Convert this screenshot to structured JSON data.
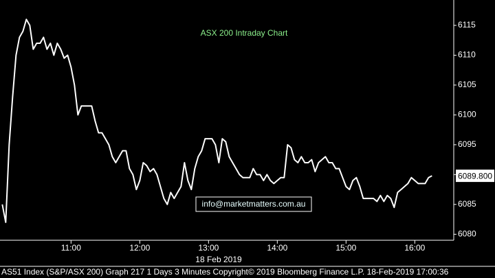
{
  "chart_data": {
    "type": "line",
    "title": "ASX 200 Intraday Chart",
    "x_axis_label": "18 Feb 2019",
    "watermark": "info@marketmatters.com.au",
    "footer": "AS51 Index (S&P/ASX 200) Graph 217 1 Days 3 Minutes Copyright© 2019 Bloomberg Finance L.P. 18-Feb-2019 17:00:36",
    "last_value": {
      "value": 6089.8,
      "label": "6089.800"
    },
    "xlim": [
      598,
      994
    ],
    "xticks": [
      {
        "value": 660,
        "label": "11:00"
      },
      {
        "value": 720,
        "label": "12:00"
      },
      {
        "value": 780,
        "label": "13:00"
      },
      {
        "value": 840,
        "label": "14:00"
      },
      {
        "value": 900,
        "label": "15:00"
      },
      {
        "value": 960,
        "label": "16:00"
      }
    ],
    "ylim": [
      6079,
      6119.25
    ],
    "yticks": [
      6080,
      6085,
      6090,
      6095,
      6100,
      6105,
      6110,
      6115
    ],
    "x": [
      600,
      603,
      606,
      609,
      612,
      615,
      618,
      621,
      624,
      627,
      630,
      633,
      636,
      639,
      642,
      645,
      648,
      651,
      654,
      657,
      660,
      663,
      666,
      669,
      672,
      675,
      678,
      681,
      684,
      687,
      690,
      693,
      696,
      699,
      702,
      705,
      708,
      711,
      714,
      717,
      720,
      723,
      726,
      729,
      732,
      735,
      738,
      741,
      744,
      747,
      750,
      753,
      756,
      759,
      762,
      765,
      768,
      771,
      774,
      777,
      780,
      783,
      786,
      789,
      792,
      795,
      798,
      801,
      804,
      807,
      810,
      813,
      816,
      819,
      822,
      825,
      828,
      831,
      834,
      837,
      840,
      843,
      846,
      849,
      852,
      855,
      858,
      861,
      864,
      867,
      870,
      873,
      876,
      879,
      882,
      885,
      888,
      891,
      894,
      897,
      900,
      903,
      906,
      909,
      912,
      915,
      918,
      921,
      924,
      927,
      930,
      933,
      936,
      939,
      942,
      945,
      948,
      951,
      954,
      957,
      960,
      963,
      966,
      969,
      972,
      975
    ],
    "series": [
      {
        "color": "#ffffff",
        "values": [
          6085,
          6082,
          6095,
          6103,
          6110,
          6113,
          6114,
          6116,
          6115,
          6111,
          6112,
          6112,
          6113,
          6111,
          6112,
          6110,
          6112,
          6111,
          6109.5,
          6110,
          6108,
          6105,
          6100,
          6101.5,
          6101.5,
          6101.5,
          6101.5,
          6099,
          6097,
          6097,
          6096,
          6095,
          6093,
          6092,
          6093,
          6094,
          6094,
          6091,
          6090,
          6087.5,
          6089,
          6092,
          6091.5,
          6090.5,
          6091,
          6090,
          6088,
          6086,
          6085,
          6087,
          6086,
          6087,
          6088,
          6092,
          6089,
          6087.5,
          6091,
          6093,
          6094,
          6096,
          6096,
          6096,
          6095,
          6092,
          6096,
          6095.5,
          6093,
          6092,
          6091,
          6090,
          6089.5,
          6089.5,
          6089.5,
          6091,
          6090,
          6090,
          6089,
          6090,
          6089,
          6088.5,
          6089,
          6089.5,
          6089.5,
          6095,
          6094.5,
          6092.5,
          6092,
          6093,
          6092,
          6092,
          6092.5,
          6090.5,
          6092,
          6092.5,
          6093,
          6092,
          6092,
          6091,
          6091,
          6089.5,
          6088,
          6087.5,
          6089,
          6089.5,
          6088,
          6086,
          6086,
          6086,
          6086,
          6085.5,
          6086.5,
          6085.5,
          6086.5,
          6086,
          6084.5,
          6087,
          6087.5,
          6088,
          6088.5,
          6089.5,
          6089,
          6088.5,
          6088.5,
          6088.5,
          6089.5,
          6089.8
        ]
      }
    ]
  }
}
